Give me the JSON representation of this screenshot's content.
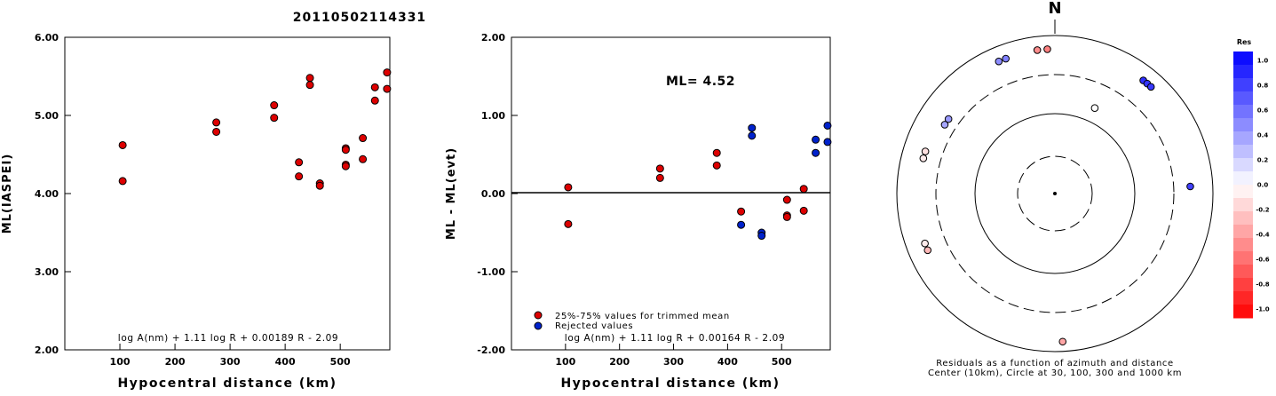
{
  "title": "20110502114331",
  "chart_data": [
    {
      "type": "scatter",
      "ylabel": "ML(IASPEI)",
      "xlabel": "Hypocentral distance (km)",
      "xlim": [
        0,
        590
      ],
      "ylim": [
        2.0,
        6.0
      ],
      "xticks": [
        "100",
        "200",
        "300",
        "400",
        "500"
      ],
      "yticks": [
        "2.00",
        "3.00",
        "4.00",
        "5.00",
        "6.00"
      ],
      "formula": "log A(nm) + 1.11 log R + 0.00189 R - 2.09",
      "color": "#dd0000",
      "points": [
        [
          105,
          4.62
        ],
        [
          105,
          4.16
        ],
        [
          275,
          4.91
        ],
        [
          275,
          4.79
        ],
        [
          380,
          5.13
        ],
        [
          380,
          4.97
        ],
        [
          425,
          4.4
        ],
        [
          425,
          4.22
        ],
        [
          445,
          5.48
        ],
        [
          445,
          5.39
        ],
        [
          463,
          4.13
        ],
        [
          463,
          4.1
        ],
        [
          510,
          4.58
        ],
        [
          510,
          4.56
        ],
        [
          510,
          4.37
        ],
        [
          510,
          4.35
        ],
        [
          541,
          4.71
        ],
        [
          541,
          4.44
        ],
        [
          563,
          5.36
        ],
        [
          563,
          5.19
        ],
        [
          585,
          5.55
        ],
        [
          585,
          5.34
        ]
      ]
    },
    {
      "type": "scatter",
      "ylabel": "ML - ML(evt)",
      "xlabel": "Hypocentral distance (km)",
      "xlim": [
        0,
        590
      ],
      "ylim": [
        -2.0,
        2.0
      ],
      "xticks": [
        "100",
        "200",
        "300",
        "400",
        "500"
      ],
      "yticks": [
        "-2.00",
        "-1.00",
        "0.00",
        "1.00",
        "2.00"
      ],
      "ml_text": "ML=  4.52",
      "formula": "log A(nm) + 1.11 log R + 0.00164 R - 2.09",
      "legend": [
        {
          "label": "25%-75% values for trimmed mean",
          "color": "#dd0000"
        },
        {
          "label": "Rejected values",
          "color": "#0022cc"
        }
      ],
      "series": [
        {
          "name": "25%-75% values for trimmed mean",
          "color": "#dd0000",
          "points": [
            [
              105,
              0.08
            ],
            [
              105,
              -0.39
            ],
            [
              275,
              0.32
            ],
            [
              275,
              0.2
            ],
            [
              380,
              0.52
            ],
            [
              380,
              0.36
            ],
            [
              425,
              -0.23
            ],
            [
              510,
              -0.08
            ],
            [
              510,
              -0.28
            ],
            [
              510,
              -0.3
            ],
            [
              541,
              0.06
            ],
            [
              541,
              -0.22
            ]
          ]
        },
        {
          "name": "Rejected values",
          "color": "#0022cc",
          "points": [
            [
              425,
              -0.4
            ],
            [
              445,
              0.84
            ],
            [
              445,
              0.74
            ],
            [
              463,
              -0.5
            ],
            [
              463,
              -0.54
            ],
            [
              563,
              0.69
            ],
            [
              563,
              0.52
            ],
            [
              585,
              0.87
            ],
            [
              585,
              0.66
            ]
          ]
        }
      ]
    },
    {
      "type": "polar-scatter",
      "north_label": "N",
      "caption1": "Residuals as a function of azimuth and distance",
      "caption2": "Center (10km), Circle at 30, 100, 300 and 1000 km",
      "colorbar": {
        "title": "Res",
        "ticks": [
          "1.0",
          "0.8",
          "0.6",
          "0.4",
          "0.2",
          "0.0",
          "-0.2",
          "-0.4",
          "-0.6",
          "-0.8",
          "-1.0"
        ]
      },
      "points": [
        {
          "az": 353,
          "dist": 660,
          "res": -0.45
        },
        {
          "az": 357,
          "dist": 660,
          "res": -0.5
        },
        {
          "az": 337,
          "dist": 640,
          "res": 0.45
        },
        {
          "az": 340,
          "dist": 640,
          "res": 0.5
        },
        {
          "az": 38,
          "dist": 640,
          "res": 0.82
        },
        {
          "az": 40,
          "dist": 640,
          "res": 0.8
        },
        {
          "az": 42,
          "dist": 640,
          "res": 0.78
        },
        {
          "az": 25,
          "dist": 150,
          "res": 0.0
        },
        {
          "az": 302,
          "dist": 420,
          "res": 0.35
        },
        {
          "az": 305,
          "dist": 420,
          "res": 0.4
        },
        {
          "az": 285,
          "dist": 510,
          "res": -0.08
        },
        {
          "az": 288,
          "dist": 510,
          "res": -0.12
        },
        {
          "az": 87,
          "dist": 500,
          "res": 0.75
        },
        {
          "az": 246,
          "dist": 560,
          "res": -0.28
        },
        {
          "az": 249,
          "dist": 560,
          "res": -0.08
        },
        {
          "az": 177,
          "dist": 740,
          "res": -0.35
        }
      ]
    }
  ]
}
